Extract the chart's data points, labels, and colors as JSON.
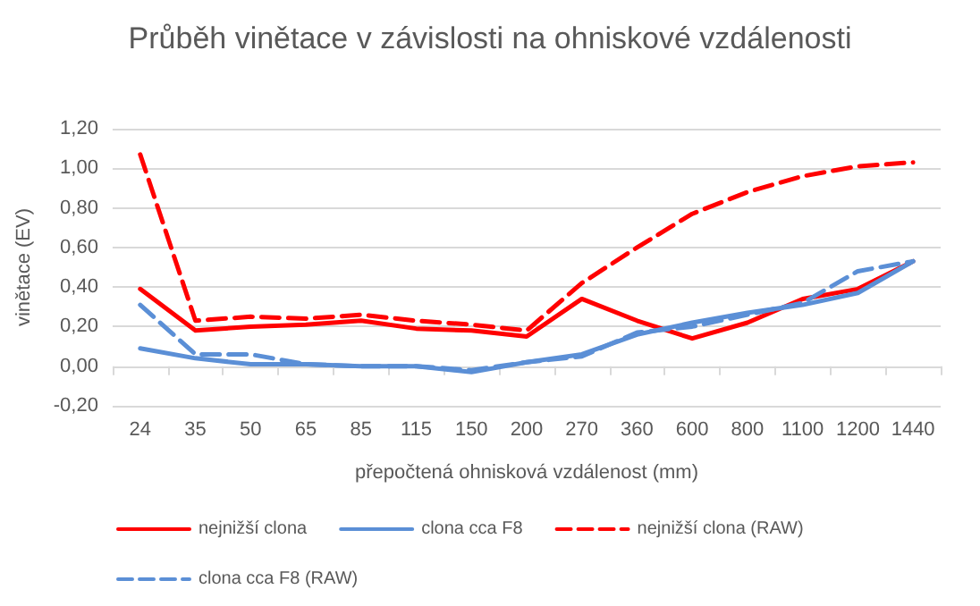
{
  "chart_data": {
    "type": "line",
    "title": "Průběh vinětace v závislosti na ohniskové vzdálenosti",
    "xlabel": "přepočtená ohnisková vzdálenost (mm)",
    "ylabel": "vinětace (EV)",
    "categories": [
      "24",
      "35",
      "50",
      "65",
      "85",
      "115",
      "150",
      "200",
      "270",
      "360",
      "600",
      "800",
      "1100",
      "1200",
      "1440"
    ],
    "series": [
      {
        "name": "nejnižší clona",
        "color": "#ff0000",
        "line_style": "solid",
        "values": [
          0.39,
          0.18,
          0.2,
          0.21,
          0.23,
          0.19,
          0.18,
          0.15,
          0.34,
          0.23,
          0.14,
          0.22,
          0.34,
          0.39,
          0.53
        ]
      },
      {
        "name": "clona cca F8",
        "color": "#5b8fd6",
        "line_style": "solid",
        "values": [
          0.09,
          0.04,
          0.01,
          0.01,
          0.0,
          0.0,
          -0.03,
          0.02,
          0.06,
          0.16,
          0.22,
          0.27,
          0.31,
          0.37,
          0.53
        ]
      },
      {
        "name": "nejnižší clona (RAW)",
        "color": "#ff0000",
        "line_style": "dashed",
        "values": [
          1.07,
          0.23,
          0.25,
          0.24,
          0.26,
          0.23,
          0.21,
          0.18,
          0.42,
          0.6,
          0.77,
          0.88,
          0.96,
          1.01,
          1.03
        ]
      },
      {
        "name": "clona cca F8 (RAW)",
        "color": "#5b8fd6",
        "line_style": "dashed",
        "values": [
          0.31,
          0.06,
          0.06,
          0.01,
          0.0,
          0.0,
          -0.02,
          0.02,
          0.05,
          0.17,
          0.2,
          0.26,
          0.32,
          0.48,
          0.53
        ]
      }
    ],
    "ylim": [
      -0.2,
      1.2
    ],
    "yticks": [
      {
        "value": -0.2,
        "label": "-0,20"
      },
      {
        "value": 0,
        "label": "0,00"
      },
      {
        "value": 0.2,
        "label": "0,20"
      },
      {
        "value": 0.4,
        "label": "0,40"
      },
      {
        "value": 0.6,
        "label": "0,60"
      },
      {
        "value": 0.8,
        "label": "0,80"
      },
      {
        "value": 1.0,
        "label": "1,00"
      },
      {
        "value": 1.2,
        "label": "1,20"
      }
    ],
    "grid": "y",
    "legend": "bottom",
    "marker": "none"
  }
}
